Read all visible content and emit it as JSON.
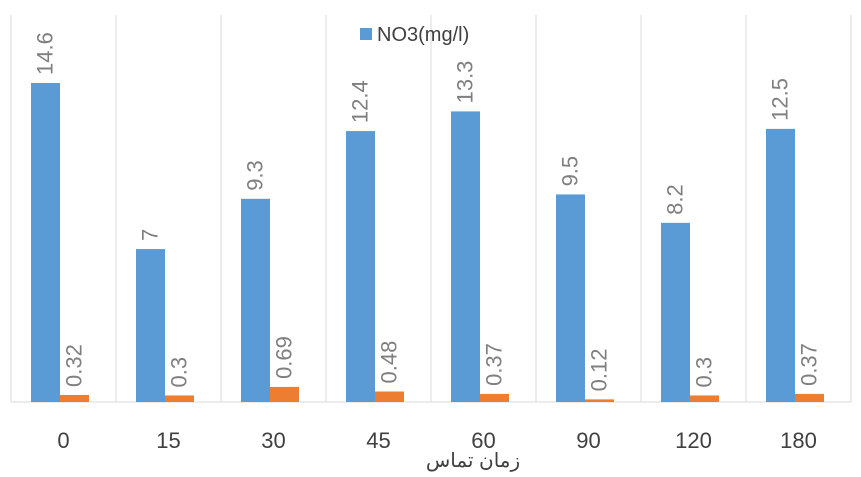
{
  "chart_data": {
    "type": "bar",
    "categories": [
      "0",
      "15",
      "30",
      "45",
      "60",
      "90",
      "120",
      "180"
    ],
    "series": [
      {
        "name": "NO3(mg/l)",
        "values": [
          14.6,
          7,
          9.3,
          12.4,
          13.3,
          9.5,
          8.2,
          12.5
        ],
        "labels": [
          "14.6",
          "7",
          "9.3",
          "12.4",
          "13.3",
          "9.5",
          "8.2",
          "12.5"
        ],
        "color": "#5b9bd5"
      },
      {
        "values": [
          0.32,
          0.3,
          0.69,
          0.48,
          0.37,
          0.12,
          0.3,
          0.37
        ],
        "labels": [
          "0.32",
          "0.3",
          "0.69",
          "0.48",
          "0.37",
          "0.12",
          "0.3",
          "0.37"
        ],
        "color": "#ed7d31"
      }
    ],
    "xlabel": "زمان تماس",
    "ylabel": "",
    "ylim": [
      0,
      16
    ],
    "grid": "vertical",
    "legend": "top-center",
    "label_color": "#7f7f7f",
    "axis_color": "#d9d9d9"
  }
}
